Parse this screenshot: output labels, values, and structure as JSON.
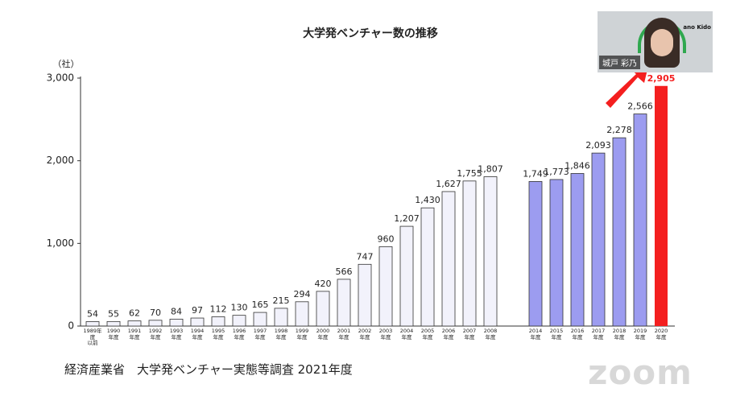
{
  "chart_data": {
    "type": "bar",
    "title": "大学発ベンチャー数の推移",
    "y_unit": "（社）",
    "categories": [
      "1989年\n度\n以前",
      "1990\n年度",
      "1991\n年度",
      "1992\n年度",
      "1993\n年度",
      "1994\n年度",
      "1995\n年度",
      "1996\n年度",
      "1997\n年度",
      "1998\n年度",
      "1999\n年度",
      "2000\n年度",
      "2001\n年度",
      "2002\n年度",
      "2003\n年度",
      "2004\n年度",
      "2005\n年度",
      "2006\n年度",
      "2007\n年度",
      "2008\n年度",
      "2014\n年度",
      "2015\n年度",
      "2016\n年度",
      "2017\n年度",
      "2018\n年度",
      "2019\n年度",
      "2020\n年度"
    ],
    "values": [
      54,
      55,
      62,
      70,
      84,
      97,
      112,
      130,
      165,
      215,
      294,
      420,
      566,
      747,
      960,
      1207,
      1430,
      1627,
      1755,
      1807,
      1749,
      1773,
      1846,
      2093,
      2278,
      2566,
      2905
    ],
    "value_labels": [
      "54",
      "55",
      "62",
      "70",
      "84",
      "97",
      "112",
      "130",
      "165",
      "215",
      "294",
      "420",
      "566",
      "747",
      "960",
      "1,207",
      "1,430",
      "1,627",
      "1,755",
      "1,807",
      "1,749",
      "1,773",
      "1,846",
      "2,093",
      "2,278",
      "2,566",
      "2,905"
    ],
    "colors": [
      "#f2f2fb",
      "#f2f2fb",
      "#f2f2fb",
      "#f2f2fb",
      "#f2f2fb",
      "#f2f2fb",
      "#f2f2fb",
      "#f2f2fb",
      "#f2f2fb",
      "#f2f2fb",
      "#f2f2fb",
      "#f2f2fb",
      "#f2f2fb",
      "#f2f2fb",
      "#f2f2fb",
      "#f2f2fb",
      "#f2f2fb",
      "#f2f2fb",
      "#f2f2fb",
      "#f2f2fb",
      "#9c9cf0",
      "#9c9cf0",
      "#9c9cf0",
      "#9c9cf0",
      "#9c9cf0",
      "#9c9cf0",
      "#f41f1f"
    ],
    "ylim": [
      0,
      3000
    ],
    "yticks": [
      0,
      {
        "value": 1000,
        "label": "1,000"
      },
      {
        "value": 2000,
        "label": "2,000"
      },
      {
        "value": 3000,
        "label": "3,000"
      }
    ],
    "source": "経済産業省　大学発ベンチャー実態等調査  2021年度"
  },
  "video": {
    "name": "城戸 彩乃",
    "tag": "ano Kido"
  },
  "app": "zoom"
}
